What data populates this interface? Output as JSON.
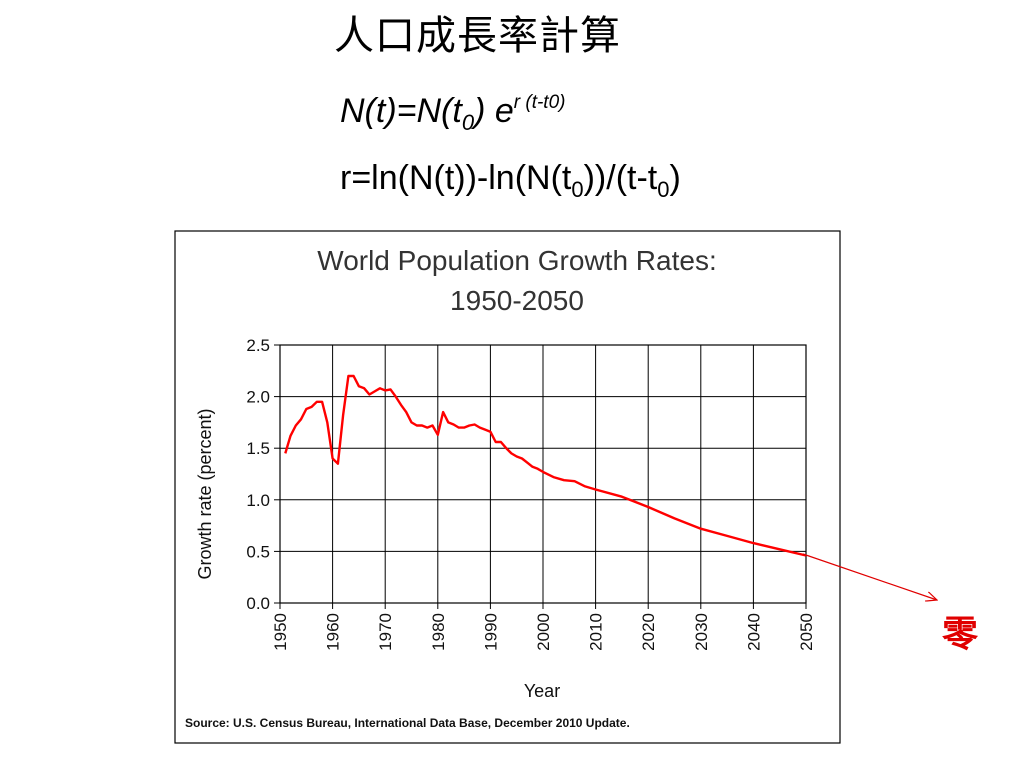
{
  "slide": {
    "title": "人口成長率計算",
    "formula1": {
      "a": "N(t)=N(t",
      "a_sub": "0",
      "b": ") e",
      "b_sup_r": "r",
      "b_sup_rest": " (t-t0)"
    },
    "formula2": {
      "a": "r=ln(N(t))-ln(N(t",
      "a_sub": "0",
      "b": "))/(t-t",
      "b_sub": "0",
      "c": ")"
    },
    "annotation": "零",
    "annotation_color": "#e00000"
  },
  "chart_data": {
    "type": "line",
    "title": "World Population Growth Rates:",
    "subtitle": "1950-2050",
    "xlabel": "Year",
    "ylabel": "Growth rate (percent)",
    "source": "Source: U.S. Census Bureau, International Data Base, December 2010 Update.",
    "xlim": [
      1950,
      2050
    ],
    "ylim": [
      0,
      2.5
    ],
    "x_ticks": [
      1950,
      1960,
      1970,
      1980,
      1990,
      2000,
      2010,
      2020,
      2030,
      2040,
      2050
    ],
    "y_ticks": [
      "0.0",
      "0.5",
      "1.0",
      "1.5",
      "2.0",
      "2.5"
    ],
    "grid": true,
    "line_color": "#ff0000",
    "series": [
      {
        "x": [
          1951,
          1952,
          1953,
          1954,
          1955,
          1956,
          1957,
          1958,
          1959,
          1960,
          1961,
          1962,
          1963,
          1964,
          1965,
          1966,
          1967,
          1968,
          1969,
          1970,
          1971,
          1972,
          1973,
          1974,
          1975,
          1976,
          1977,
          1978,
          1979,
          1980,
          1981,
          1982,
          1983,
          1984,
          1985,
          1986,
          1987,
          1988,
          1989,
          1990,
          1991,
          1992,
          1993,
          1994,
          1995,
          1996,
          1997,
          1998,
          1999,
          2000,
          2002,
          2004,
          2006,
          2008,
          2010,
          2015,
          2020,
          2025,
          2030,
          2035,
          2040,
          2045,
          2050
        ],
        "y": [
          1.45,
          1.62,
          1.72,
          1.78,
          1.88,
          1.9,
          1.95,
          1.95,
          1.75,
          1.4,
          1.35,
          1.82,
          2.2,
          2.2,
          2.1,
          2.08,
          2.02,
          2.05,
          2.08,
          2.06,
          2.07,
          2.0,
          1.92,
          1.85,
          1.75,
          1.72,
          1.72,
          1.7,
          1.72,
          1.63,
          1.85,
          1.75,
          1.73,
          1.7,
          1.7,
          1.72,
          1.73,
          1.7,
          1.68,
          1.66,
          1.56,
          1.56,
          1.5,
          1.45,
          1.42,
          1.4,
          1.36,
          1.32,
          1.3,
          1.27,
          1.22,
          1.19,
          1.18,
          1.13,
          1.1,
          1.03,
          0.93,
          0.82,
          0.72,
          0.65,
          0.58,
          0.52,
          0.46
        ]
      }
    ]
  }
}
